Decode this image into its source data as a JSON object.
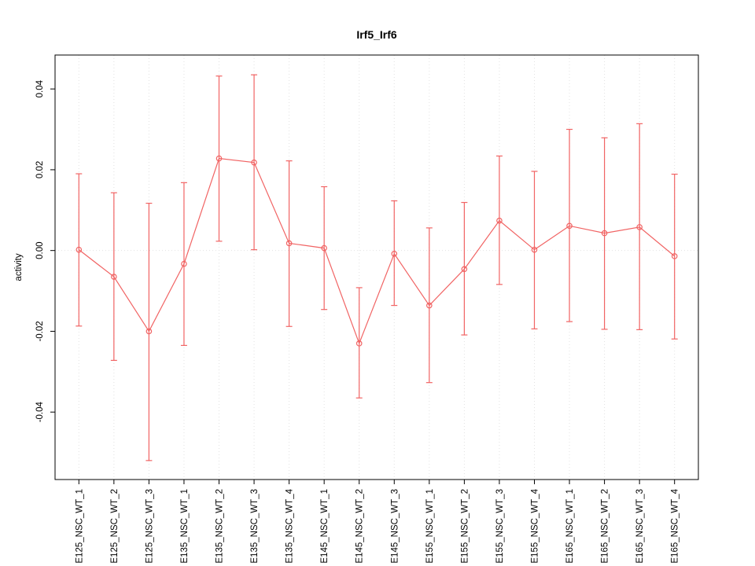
{
  "chart_data": {
    "type": "scatter",
    "title": "Irf5_Irf6",
    "xlabel": "",
    "ylabel": "activity",
    "grid": true,
    "zero_line": true,
    "legend": "none",
    "series_color": "#F16464",
    "axis_color": "#000000",
    "grid_color": "#E2E2E2",
    "ylim": [
      -0.0567,
      0.0484
    ],
    "y_ticks": [
      -0.04,
      -0.02,
      0.0,
      0.02,
      0.04
    ],
    "categories": [
      "E125_NSC_WT_1",
      "E125_NSC_WT_2",
      "E125_NSC_WT_3",
      "E135_NSC_WT_1",
      "E135_NSC_WT_2",
      "E135_NSC_WT_3",
      "E135_NSC_WT_4",
      "E145_NSC_WT_1",
      "E145_NSC_WT_2",
      "E145_NSC_WT_3",
      "E155_NSC_WT_1",
      "E155_NSC_WT_2",
      "E155_NSC_WT_3",
      "E155_NSC_WT_4",
      "E165_NSC_WT_1",
      "E165_NSC_WT_2",
      "E165_NSC_WT_3",
      "E165_NSC_WT_4"
    ],
    "series": [
      {
        "name": "activity",
        "values": [
          0.0002,
          -0.0065,
          -0.02,
          -0.0033,
          0.0228,
          0.0218,
          0.0018,
          0.0006,
          -0.023,
          -0.0008,
          -0.0136,
          -0.0046,
          0.0074,
          0.0002,
          0.0061,
          0.0043,
          0.0058,
          -0.0014
        ],
        "error_low": [
          -0.0187,
          -0.0272,
          -0.052,
          -0.0235,
          0.0023,
          0.0002,
          -0.0188,
          -0.0146,
          -0.0365,
          -0.0136,
          -0.0327,
          -0.0209,
          -0.0084,
          -0.0194,
          -0.0176,
          -0.0195,
          -0.0196,
          -0.0219
        ],
        "error_high": [
          0.019,
          0.0143,
          0.0117,
          0.0168,
          0.0432,
          0.0435,
          0.0222,
          0.0158,
          -0.0092,
          0.0123,
          0.0056,
          0.0119,
          0.0234,
          0.0196,
          0.03,
          0.0279,
          0.0314,
          0.0189
        ]
      }
    ]
  }
}
